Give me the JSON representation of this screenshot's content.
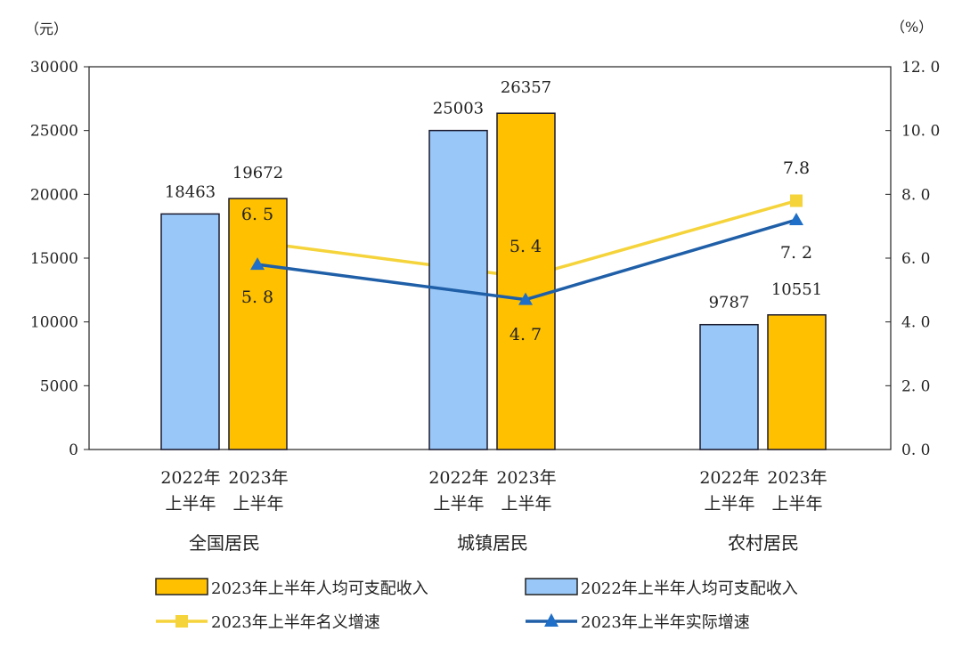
{
  "chart_data": {
    "type": "bar",
    "left_axis_unit": "（元）",
    "right_axis_unit": "（%）",
    "ylim": [
      0,
      30000
    ],
    "y2lim": [
      0,
      12
    ],
    "yticks": [
      "0",
      "5000",
      "10000",
      "15000",
      "20000",
      "25000",
      "30000"
    ],
    "y2ticks": [
      "0.0",
      "2.0",
      "4.0",
      "6.0",
      "8.0",
      "10.0",
      "12.0"
    ],
    "categories": [
      "全国居民",
      "城镇居民",
      "农村居民"
    ],
    "sub_labels": [
      [
        "2022年",
        "上半年"
      ],
      [
        "2023年",
        "上半年"
      ]
    ],
    "series": [
      {
        "name": "2022年上半年人均可支配收入",
        "kind": "bar",
        "axis": "left",
        "color": "#99C7F7",
        "values": [
          18463,
          25003,
          9787
        ]
      },
      {
        "name": "2023年上半年人均可支配收入",
        "kind": "bar",
        "axis": "left",
        "color": "#FFC000",
        "values": [
          19672,
          26357,
          10551
        ]
      },
      {
        "name": "2023年上半年名义增速",
        "kind": "line",
        "axis": "right",
        "marker": "square",
        "color": "#F5D33A",
        "values": [
          6.5,
          5.4,
          7.8
        ],
        "labels": [
          "6. 5",
          "5. 4",
          "7.8"
        ]
      },
      {
        "name": "2023年上半年实际增速",
        "kind": "line",
        "axis": "right",
        "marker": "triangle",
        "color": "#1F5FA8",
        "values": [
          5.8,
          4.7,
          7.2
        ],
        "labels": [
          "5. 8",
          "4. 7",
          "7. 2"
        ]
      }
    ],
    "legend_placement": "bottom",
    "grid": false
  }
}
